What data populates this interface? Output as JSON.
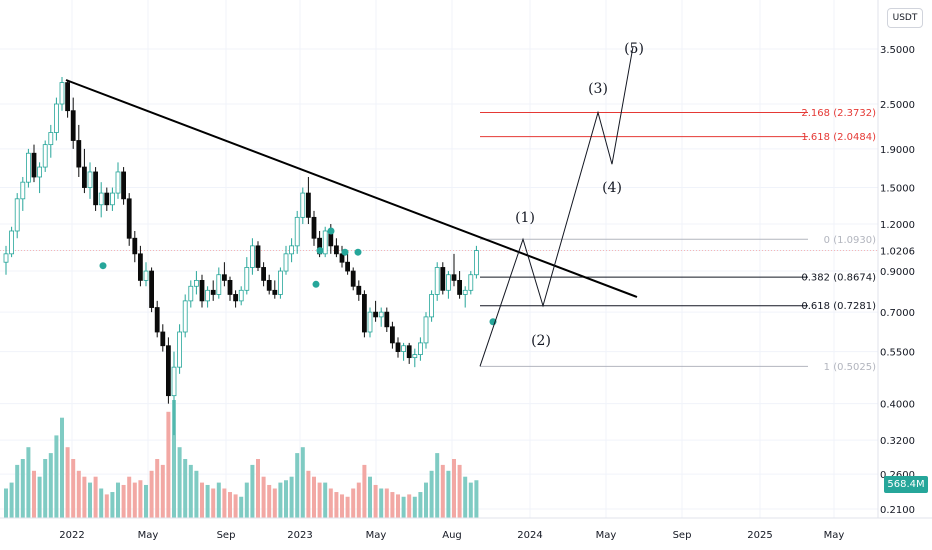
{
  "currency": "USDT",
  "volume_badge": "568.4M",
  "colors": {
    "up": "#26a69a",
    "down": "#0b0b0b",
    "vol_up": "#7fcbc3",
    "vol_down": "#f2a8a4",
    "fib_black": "#131722",
    "fib_red": "#e53935",
    "fib_grey": "#b2b5be",
    "trendline": "#000000"
  },
  "chart_data": {
    "type": "candlestick",
    "y_scale": "log",
    "price_ticks": [
      "3.5000",
      "2.5000",
      "1.9000",
      "1.5000",
      "1.2000",
      "1.0206",
      "0.9000",
      "0.7000",
      "0.5500",
      "0.4000",
      "0.3200",
      "0.2600",
      "0.2100"
    ],
    "x_ticks": [
      "2022",
      "May",
      "Sep",
      "2023",
      "May",
      "Aug",
      "2024",
      "May",
      "Sep",
      "2025",
      "May"
    ],
    "fib_levels": [
      {
        "label": "0 (1.0930)",
        "price": 1.093,
        "color": "grey"
      },
      {
        "label": "0.382 (0.8674)",
        "price": 0.8674,
        "color": "black"
      },
      {
        "label": "0.618 (0.7281)",
        "price": 0.7281,
        "color": "black"
      },
      {
        "label": "1 (0.5025)",
        "price": 0.5025,
        "color": "grey"
      },
      {
        "label": "1.618 (2.0484)",
        "price": 2.0484,
        "color": "red"
      },
      {
        "label": "2.168 (2.3732)",
        "price": 2.3732,
        "color": "red"
      }
    ],
    "wave_labels": [
      "(1)",
      "(2)",
      "(3)",
      "(4)",
      "(5)"
    ],
    "candles": [
      [
        0.95,
        1.05,
        0.88,
        1.0
      ],
      [
        1.0,
        1.18,
        0.98,
        1.15
      ],
      [
        1.15,
        1.45,
        1.1,
        1.4
      ],
      [
        1.4,
        1.6,
        1.3,
        1.55
      ],
      [
        1.55,
        1.9,
        1.5,
        1.85
      ],
      [
        1.85,
        1.95,
        1.55,
        1.6
      ],
      [
        1.6,
        1.75,
        1.45,
        1.7
      ],
      [
        1.7,
        2.0,
        1.65,
        1.95
      ],
      [
        1.95,
        2.2,
        1.8,
        2.1
      ],
      [
        2.1,
        2.6,
        2.0,
        2.5
      ],
      [
        2.5,
        2.95,
        2.4,
        2.85
      ],
      [
        2.85,
        2.9,
        2.3,
        2.4
      ],
      [
        2.4,
        2.6,
        1.9,
        2.0
      ],
      [
        2.0,
        2.2,
        1.6,
        1.7
      ],
      [
        1.7,
        1.9,
        1.45,
        1.5
      ],
      [
        1.5,
        1.75,
        1.4,
        1.65
      ],
      [
        1.65,
        1.7,
        1.3,
        1.35
      ],
      [
        1.35,
        1.55,
        1.25,
        1.45
      ],
      [
        1.45,
        1.5,
        1.3,
        1.35
      ],
      [
        1.35,
        1.5,
        1.3,
        1.45
      ],
      [
        1.45,
        1.75,
        1.4,
        1.65
      ],
      [
        1.65,
        1.7,
        1.35,
        1.4
      ],
      [
        1.4,
        1.45,
        1.05,
        1.1
      ],
      [
        1.1,
        1.15,
        0.95,
        1.0
      ],
      [
        1.0,
        1.05,
        0.82,
        0.85
      ],
      [
        0.85,
        0.95,
        0.82,
        0.9
      ],
      [
        0.9,
        0.92,
        0.7,
        0.72
      ],
      [
        0.72,
        0.75,
        0.6,
        0.62
      ],
      [
        0.62,
        0.65,
        0.55,
        0.57
      ],
      [
        0.57,
        0.6,
        0.4,
        0.42
      ],
      [
        0.42,
        0.55,
        0.33,
        0.5
      ],
      [
        0.5,
        0.65,
        0.48,
        0.62
      ],
      [
        0.62,
        0.78,
        0.6,
        0.75
      ],
      [
        0.75,
        0.85,
        0.72,
        0.82
      ],
      [
        0.82,
        0.9,
        0.78,
        0.85
      ],
      [
        0.85,
        0.88,
        0.72,
        0.75
      ],
      [
        0.75,
        0.82,
        0.72,
        0.8
      ],
      [
        0.8,
        0.85,
        0.75,
        0.78
      ],
      [
        0.78,
        0.92,
        0.76,
        0.88
      ],
      [
        0.88,
        0.95,
        0.82,
        0.85
      ],
      [
        0.85,
        0.87,
        0.75,
        0.78
      ],
      [
        0.78,
        0.8,
        0.72,
        0.75
      ],
      [
        0.75,
        0.82,
        0.73,
        0.8
      ],
      [
        0.8,
        0.98,
        0.78,
        0.92
      ],
      [
        0.92,
        1.1,
        0.88,
        1.05
      ],
      [
        1.05,
        1.08,
        0.9,
        0.92
      ],
      [
        0.92,
        0.95,
        0.82,
        0.85
      ],
      [
        0.85,
        0.88,
        0.78,
        0.8
      ],
      [
        0.8,
        0.85,
        0.76,
        0.78
      ],
      [
        0.78,
        0.92,
        0.76,
        0.9
      ],
      [
        0.9,
        1.05,
        0.88,
        1.0
      ],
      [
        1.0,
        1.1,
        0.95,
        1.05
      ],
      [
        1.05,
        1.3,
        1.0,
        1.25
      ],
      [
        1.25,
        1.5,
        1.2,
        1.45
      ],
      [
        1.45,
        1.6,
        1.2,
        1.25
      ],
      [
        1.25,
        1.3,
        1.05,
        1.1
      ],
      [
        1.1,
        1.15,
        0.98,
        1.0
      ],
      [
        1.0,
        1.18,
        0.98,
        1.15
      ],
      [
        1.15,
        1.2,
        1.0,
        1.05
      ],
      [
        1.05,
        1.1,
        0.98,
        1.0
      ],
      [
        1.0,
        1.05,
        0.92,
        0.95
      ],
      [
        0.95,
        1.0,
        0.88,
        0.9
      ],
      [
        0.9,
        0.92,
        0.8,
        0.82
      ],
      [
        0.82,
        0.85,
        0.75,
        0.78
      ],
      [
        0.78,
        0.8,
        0.6,
        0.62
      ],
      [
        0.62,
        0.72,
        0.6,
        0.7
      ],
      [
        0.7,
        0.75,
        0.66,
        0.68
      ],
      [
        0.68,
        0.72,
        0.64,
        0.7
      ],
      [
        0.7,
        0.72,
        0.62,
        0.64
      ],
      [
        0.64,
        0.66,
        0.56,
        0.58
      ],
      [
        0.58,
        0.6,
        0.53,
        0.55
      ],
      [
        0.55,
        0.58,
        0.52,
        0.57
      ],
      [
        0.57,
        0.58,
        0.51,
        0.53
      ],
      [
        0.53,
        0.56,
        0.5,
        0.54
      ],
      [
        0.54,
        0.6,
        0.52,
        0.58
      ],
      [
        0.58,
        0.7,
        0.56,
        0.68
      ],
      [
        0.68,
        0.8,
        0.66,
        0.78
      ],
      [
        0.78,
        0.95,
        0.75,
        0.92
      ],
      [
        0.92,
        0.95,
        0.78,
        0.8
      ],
      [
        0.8,
        0.9,
        0.76,
        0.88
      ],
      [
        0.88,
        1.0,
        0.82,
        0.85
      ],
      [
        0.85,
        0.9,
        0.76,
        0.78
      ],
      [
        0.78,
        0.82,
        0.72,
        0.8
      ],
      [
        0.8,
        0.9,
        0.78,
        0.88
      ],
      [
        0.88,
        1.05,
        0.86,
        1.02
      ]
    ],
    "volumes": [
      0.25,
      0.3,
      0.45,
      0.5,
      0.6,
      0.4,
      0.35,
      0.5,
      0.55,
      0.7,
      0.85,
      0.6,
      0.5,
      0.4,
      0.35,
      0.3,
      0.35,
      0.25,
      0.2,
      0.22,
      0.3,
      0.28,
      0.35,
      0.3,
      0.32,
      0.28,
      0.4,
      0.5,
      0.45,
      0.9,
      1.0,
      0.6,
      0.5,
      0.45,
      0.4,
      0.3,
      0.28,
      0.25,
      0.3,
      0.25,
      0.22,
      0.2,
      0.18,
      0.3,
      0.45,
      0.5,
      0.35,
      0.28,
      0.25,
      0.3,
      0.32,
      0.35,
      0.55,
      0.6,
      0.4,
      0.35,
      0.3,
      0.3,
      0.25,
      0.22,
      0.2,
      0.18,
      0.25,
      0.3,
      0.45,
      0.35,
      0.28,
      0.25,
      0.25,
      0.22,
      0.2,
      0.18,
      0.2,
      0.18,
      0.22,
      0.3,
      0.4,
      0.55,
      0.45,
      0.4,
      0.5,
      0.45,
      0.35,
      0.3,
      0.32
    ]
  }
}
